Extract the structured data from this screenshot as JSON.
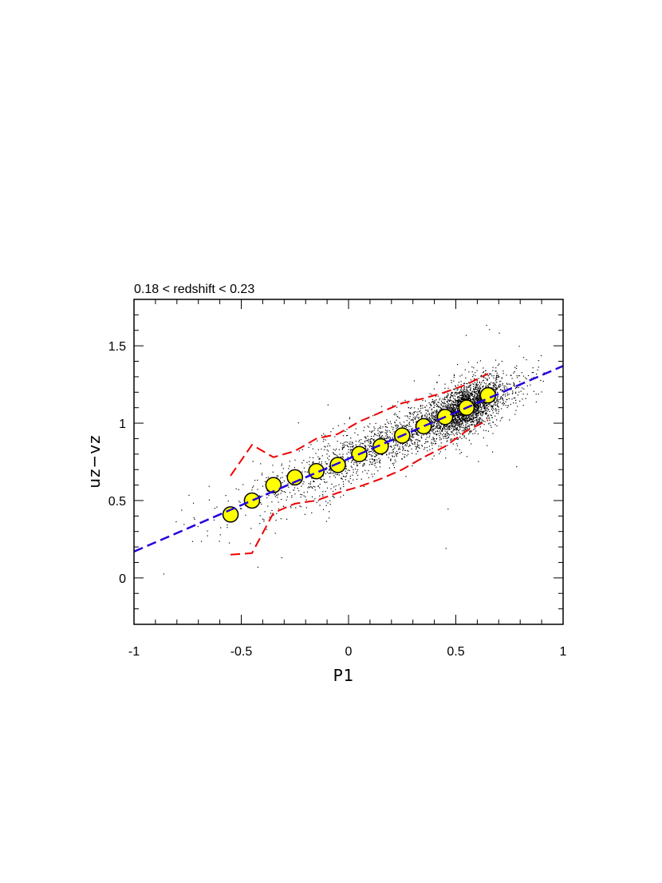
{
  "chart_data": {
    "type": "scatter",
    "title": "0.18 < redshift < 0.23",
    "xlabel": "P1",
    "ylabel": "uz−vz",
    "xlim": [
      -1,
      1
    ],
    "ylim": [
      -0.3,
      1.8
    ],
    "x_ticks": [
      -1,
      -0.5,
      0,
      0.5,
      1
    ],
    "x_tick_labels": [
      "-1",
      "-0.5",
      "0",
      "0.5",
      "1"
    ],
    "y_ticks": [
      0,
      0.5,
      1,
      1.5
    ],
    "y_tick_labels": [
      "0",
      "0.5",
      "1",
      "1.5"
    ],
    "grid": false,
    "legend": "none",
    "series": [
      {
        "kind": "binned_median",
        "marker": "circle",
        "color": "#ffff00",
        "edge_color": "#000000",
        "x": [
          -0.55,
          -0.45,
          -0.35,
          -0.25,
          -0.15,
          -0.05,
          0.05,
          0.15,
          0.25,
          0.35,
          0.45,
          0.55,
          0.65
        ],
        "y": [
          0.41,
          0.5,
          0.6,
          0.65,
          0.69,
          0.73,
          0.8,
          0.85,
          0.92,
          0.98,
          1.04,
          1.1,
          1.18
        ]
      },
      {
        "kind": "fit_line",
        "style": "dashed",
        "color": "#2200dd",
        "x": [
          -1,
          1
        ],
        "y": [
          0.17,
          1.37
        ]
      },
      {
        "kind": "upper_envelope",
        "style": "dashed",
        "color": "#ee0000",
        "x": [
          -0.55,
          -0.45,
          -0.35,
          -0.25,
          -0.15,
          -0.05,
          0.05,
          0.15,
          0.25,
          0.35,
          0.45,
          0.55,
          0.65
        ],
        "y": [
          0.66,
          0.86,
          0.78,
          0.82,
          0.9,
          0.93,
          1.01,
          1.07,
          1.13,
          1.16,
          1.2,
          1.25,
          1.32
        ]
      },
      {
        "kind": "lower_envelope",
        "style": "dashed",
        "color": "#ee0000",
        "x": [
          -0.55,
          -0.45,
          -0.35,
          -0.25,
          -0.15,
          -0.05,
          0.05,
          0.15,
          0.25,
          0.35,
          0.45,
          0.55,
          0.65
        ],
        "y": [
          0.15,
          0.16,
          0.42,
          0.48,
          0.5,
          0.55,
          0.59,
          0.64,
          0.7,
          0.78,
          0.85,
          0.95,
          1.02
        ]
      },
      {
        "kind": "galaxies",
        "marker": "dot",
        "color": "#000000",
        "approx_count": 3800,
        "relation": "y = 0.77 + 0.6 * x",
        "scatter_sigma": 0.08,
        "peak_x": 0.55
      }
    ]
  }
}
